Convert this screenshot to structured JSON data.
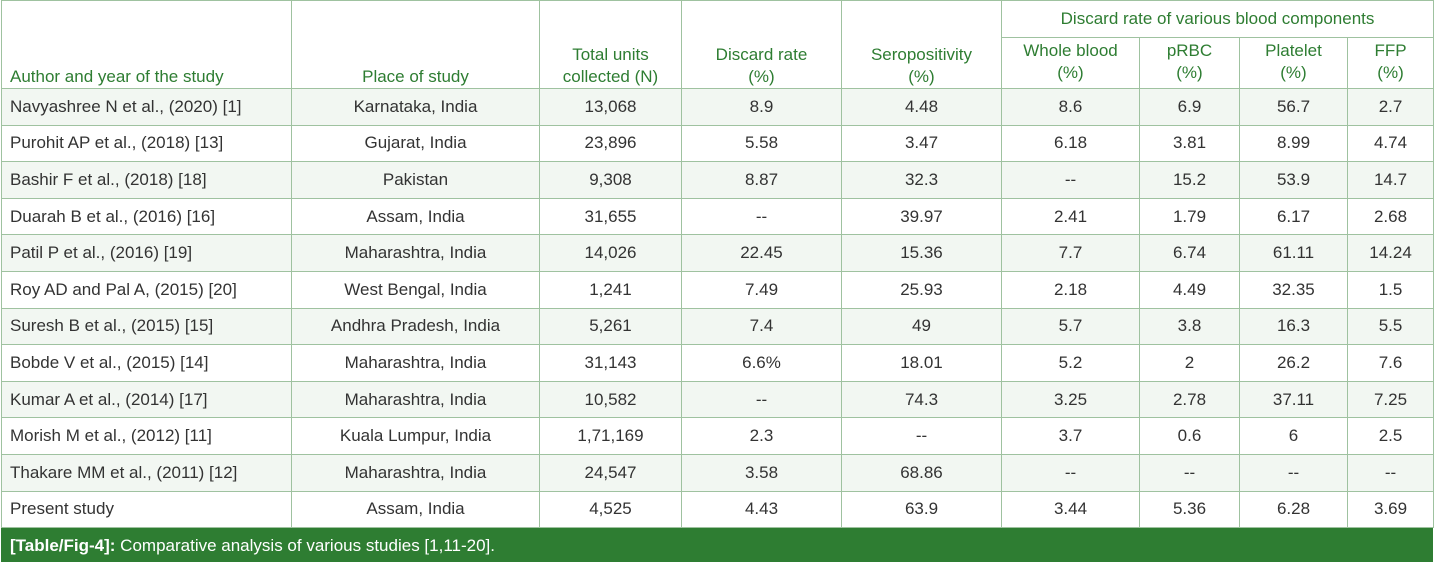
{
  "table": {
    "group_header": "Discard rate of various blood components",
    "columns": [
      {
        "key": "author",
        "label": "Author and year of the study"
      },
      {
        "key": "place",
        "label": "Place of study"
      },
      {
        "key": "total",
        "label_line1": "Total units",
        "label_line2": "collected (N)"
      },
      {
        "key": "discard",
        "label_line1": "Discard rate",
        "label_line2": "(%)"
      },
      {
        "key": "sero",
        "label_line1": "Seropositivity",
        "label_line2": "(%)"
      },
      {
        "key": "whole",
        "label_line1": "Whole blood",
        "label_line2": "(%)"
      },
      {
        "key": "prbc",
        "label_line1": "pRBC",
        "label_line2": "(%)"
      },
      {
        "key": "platelet",
        "label_line1": "Platelet",
        "label_line2": "(%)"
      },
      {
        "key": "ffp",
        "label_line1": "FFP",
        "label_line2": "(%)"
      }
    ],
    "rows": [
      [
        "Navyashree N et al., (2020) [1]",
        "Karnataka, India",
        "13,068",
        "8.9",
        "4.48",
        "8.6",
        "6.9",
        "56.7",
        "2.7"
      ],
      [
        "Purohit AP et al., (2018) [13]",
        "Gujarat, India",
        "23,896",
        "5.58",
        "3.47",
        "6.18",
        "3.81",
        "8.99",
        "4.74"
      ],
      [
        "Bashir F et al., (2018) [18]",
        "Pakistan",
        "9,308",
        "8.87",
        "32.3",
        "--",
        "15.2",
        "53.9",
        "14.7"
      ],
      [
        "Duarah B et al., (2016) [16]",
        "Assam, India",
        "31,655",
        "--",
        "39.97",
        "2.41",
        "1.79",
        "6.17",
        "2.68"
      ],
      [
        "Patil P et al., (2016) [19]",
        "Maharashtra, India",
        "14,026",
        "22.45",
        "15.36",
        "7.7",
        "6.74",
        "61.11",
        "14.24"
      ],
      [
        "Roy AD and Pal A, (2015) [20]",
        "West Bengal, India",
        "1,241",
        "7.49",
        "25.93",
        "2.18",
        "4.49",
        "32.35",
        "1.5"
      ],
      [
        "Suresh B et al., (2015) [15]",
        "Andhra Pradesh, India",
        "5,261",
        "7.4",
        "49",
        "5.7",
        "3.8",
        "16.3",
        "5.5"
      ],
      [
        "Bobde V et al., (2015) [14]",
        "Maharashtra, India",
        "31,143",
        "6.6%",
        "18.01",
        "5.2",
        "2",
        "26.2",
        "7.6"
      ],
      [
        "Kumar A et al., (2014) [17]",
        "Maharashtra, India",
        "10,582",
        "--",
        "74.3",
        "3.25",
        "2.78",
        "37.11",
        "7.25"
      ],
      [
        "Morish M et al., (2012) [11]",
        "Kuala Lumpur, India",
        "1,71,169",
        "2.3",
        "--",
        "3.7",
        "0.6",
        "6",
        "2.5"
      ],
      [
        "Thakare MM et al., (2011) [12]",
        "Maharashtra, India",
        "24,547",
        "3.58",
        "68.86",
        "--",
        "--",
        "--",
        "--"
      ],
      [
        "Present study",
        "Assam, India",
        "4,525",
        "4.43",
        "63.9",
        "3.44",
        "5.36",
        "6.28",
        "3.69"
      ]
    ]
  },
  "caption": {
    "label": "[Table/Fig-4]:",
    "text": " Comparative analysis of various studies [1,11-20]."
  },
  "colors": {
    "header_text": "#2e7d32",
    "caption_bg": "#2e7d32",
    "border": "#9fc2a0",
    "row_shade": "#f2f7f2"
  }
}
